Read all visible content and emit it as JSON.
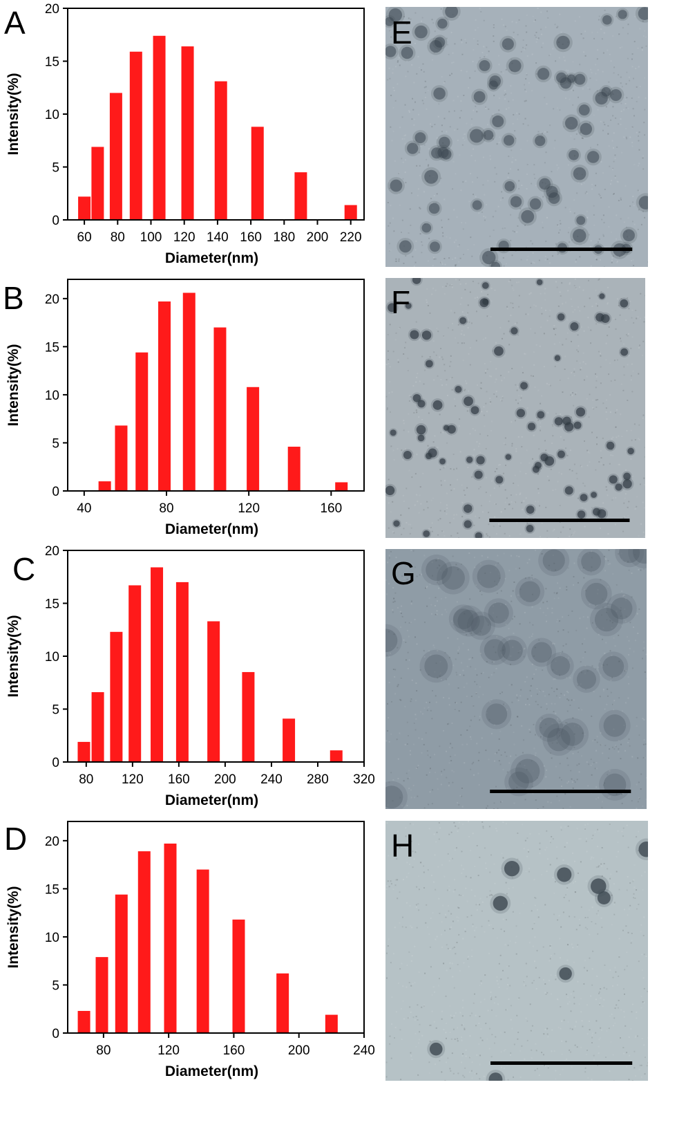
{
  "bar_color": "#ff1a1a",
  "chart_data": [
    {
      "type": "bar",
      "panel": "A",
      "xlabel": "Diameter(nm)",
      "ylabel": "Intensity(%)",
      "xlim": [
        50,
        228
      ],
      "ylim": [
        0,
        20
      ],
      "xticks": [
        60,
        80,
        100,
        120,
        140,
        160,
        180,
        200,
        220
      ],
      "yticks": [
        0,
        5,
        10,
        15,
        20
      ],
      "x": [
        60,
        68,
        79,
        91,
        105,
        122,
        142,
        164,
        190,
        220
      ],
      "values": [
        2.2,
        6.9,
        12.0,
        15.9,
        17.4,
        16.4,
        13.1,
        8.8,
        4.5,
        1.4
      ]
    },
    {
      "type": "bar",
      "panel": "B",
      "xlabel": "Diameter(nm)",
      "ylabel": "Intensity(%)",
      "xlim": [
        32,
        176
      ],
      "ylim": [
        0,
        22
      ],
      "xticks": [
        40,
        80,
        120,
        160
      ],
      "yticks": [
        0,
        5,
        10,
        15,
        20
      ],
      "x": [
        50,
        58,
        68,
        79,
        91,
        106,
        122,
        142,
        165
      ],
      "values": [
        1.0,
        6.8,
        14.4,
        19.7,
        20.6,
        17.0,
        10.8,
        4.6,
        0.9
      ]
    },
    {
      "type": "bar",
      "panel": "C",
      "xlabel": "Diameter(nm)",
      "ylabel": "Intensity(%)",
      "xlim": [
        64,
        320
      ],
      "ylim": [
        0,
        20
      ],
      "xticks": [
        80,
        120,
        160,
        200,
        240,
        280,
        320
      ],
      "yticks": [
        0,
        5,
        10,
        15,
        20
      ],
      "x": [
        78,
        90,
        106,
        122,
        141,
        163,
        190,
        220,
        255,
        296
      ],
      "values": [
        1.9,
        6.6,
        12.3,
        16.7,
        18.4,
        17.0,
        13.3,
        8.5,
        4.1,
        1.1
      ]
    },
    {
      "type": "bar",
      "panel": "D",
      "xlabel": "Diameter(nm)",
      "ylabel": "Intensity(%)",
      "xlim": [
        58,
        240
      ],
      "ylim": [
        0,
        22
      ],
      "xticks": [
        80,
        120,
        160,
        200,
        240
      ],
      "yticks": [
        0,
        5,
        10,
        15,
        20
      ],
      "x": [
        68,
        79,
        91,
        105,
        121,
        141,
        163,
        190,
        220
      ],
      "values": [
        2.3,
        7.9,
        14.4,
        18.9,
        19.7,
        17.0,
        11.8,
        6.2,
        1.9
      ]
    }
  ],
  "micrographs": [
    {
      "label": "E",
      "background": "#a6b1ba",
      "particle": "#3b4650",
      "style": "small-dense"
    },
    {
      "label": "F",
      "background": "#aab3b9",
      "particle": "#2f3942",
      "style": "tiny-irregular"
    },
    {
      "label": "G",
      "background": "#8f9ca6",
      "particle": "#4d5a64",
      "style": "large-diffuse"
    },
    {
      "label": "H",
      "background": "#b6c2c6",
      "particle": "#3f4a52",
      "style": "sparse"
    }
  ]
}
